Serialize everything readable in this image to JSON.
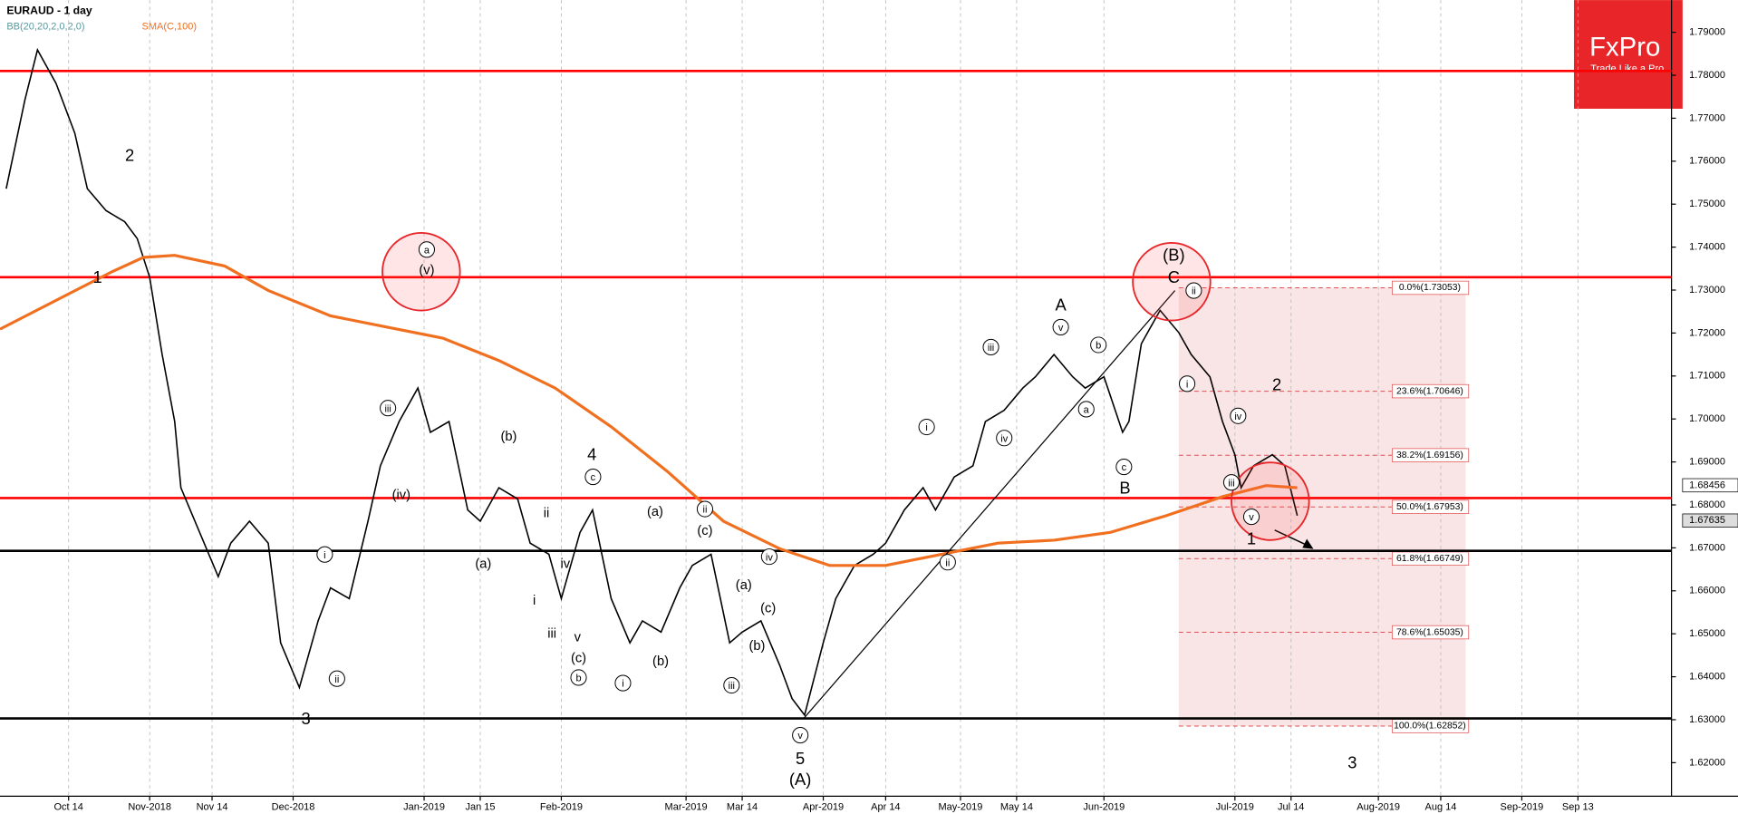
{
  "chart_data": {
    "type": "line",
    "title": "EURAUD - 1 day",
    "indicators": [
      "BB(20,20,2,0,2,0)",
      "SMA(C,100)"
    ],
    "logo": {
      "name": "FxPro",
      "slogan": "Trade Like a Pro"
    },
    "xlim": [
      0,
      268
    ],
    "ylim": [
      1.6122,
      1.7975
    ],
    "grid": "vertical",
    "xticks": [
      {
        "value": 11,
        "label": "Oct 14"
      },
      {
        "value": 24,
        "label": "Nov-2018"
      },
      {
        "value": 34,
        "label": "Nov 14"
      },
      {
        "value": 47,
        "label": "Dec-2018"
      },
      {
        "value": 68,
        "label": "Jan-2019"
      },
      {
        "value": 77,
        "label": "Jan 15"
      },
      {
        "value": 90,
        "label": "Feb-2019"
      },
      {
        "value": 110,
        "label": "Mar-2019"
      },
      {
        "value": 119,
        "label": "Mar 14"
      },
      {
        "value": 132,
        "label": "Apr-2019"
      },
      {
        "value": 142,
        "label": "Apr 14"
      },
      {
        "value": 154,
        "label": "May-2019"
      },
      {
        "value": 163,
        "label": "May 14"
      },
      {
        "value": 177,
        "label": "Jun-2019"
      },
      {
        "value": 198,
        "label": "Jul-2019"
      },
      {
        "value": 207,
        "label": "Jul 14"
      },
      {
        "value": 221,
        "label": "Aug-2019"
      },
      {
        "value": 231,
        "label": "Aug 14"
      },
      {
        "value": 244,
        "label": "Sep-2019"
      },
      {
        "value": 253,
        "label": "Sep 13"
      }
    ],
    "yticks": [
      {
        "value": 1.62,
        "label": "1.62000"
      },
      {
        "value": 1.63,
        "label": "1.63000"
      },
      {
        "value": 1.64,
        "label": "1.64000"
      },
      {
        "value": 1.65,
        "label": "1.65000"
      },
      {
        "value": 1.66,
        "label": "1.66000"
      },
      {
        "value": 1.67,
        "label": "1.67000"
      },
      {
        "value": 1.68,
        "label": "1.68000"
      },
      {
        "value": 1.69,
        "label": "1.69000"
      },
      {
        "value": 1.7,
        "label": "1.70000"
      },
      {
        "value": 1.71,
        "label": "1.71000"
      },
      {
        "value": 1.72,
        "label": "1.72000"
      },
      {
        "value": 1.73,
        "label": "1.73000"
      },
      {
        "value": 1.74,
        "label": "1.74000"
      },
      {
        "value": 1.75,
        "label": "1.75000"
      },
      {
        "value": 1.76,
        "label": "1.76000"
      },
      {
        "value": 1.77,
        "label": "1.77000"
      },
      {
        "value": 1.78,
        "label": "1.78000"
      },
      {
        "value": 1.79,
        "label": "1.79000"
      }
    ],
    "series": [
      {
        "name": "EURAUD",
        "color": "#000000",
        "x": [
          1,
          4,
          6,
          9,
          12,
          14,
          17,
          20,
          22,
          24,
          26,
          28,
          29,
          32,
          35,
          37,
          40,
          43,
          45,
          48,
          51,
          53,
          56,
          59,
          61,
          64,
          67,
          69,
          72,
          75,
          77,
          80,
          83,
          85,
          88,
          90,
          93,
          95,
          98,
          101,
          103,
          106,
          109,
          111,
          114,
          117,
          119,
          122,
          125,
          127,
          129,
          132,
          134,
          137,
          140,
          142,
          145,
          148,
          150,
          153,
          156,
          158,
          161,
          164,
          166,
          169,
          172,
          174,
          177,
          180,
          181,
          183,
          186,
          189,
          191,
          194,
          196,
          198,
          199,
          201,
          204,
          206,
          208
        ],
        "values": [
          1.7536,
          1.7743,
          1.7859,
          1.7781,
          1.7665,
          1.7536,
          1.7485,
          1.7459,
          1.742,
          1.733,
          1.715,
          1.6994,
          1.684,
          1.6736,
          1.6633,
          1.6711,
          1.6762,
          1.6711,
          1.6479,
          1.6375,
          1.653,
          1.6607,
          1.6582,
          1.6762,
          1.6891,
          1.6994,
          1.7072,
          1.6969,
          1.6994,
          1.6788,
          1.6762,
          1.684,
          1.6814,
          1.6711,
          1.6685,
          1.6582,
          1.6736,
          1.6788,
          1.6582,
          1.6479,
          1.653,
          1.6504,
          1.6607,
          1.6659,
          1.6685,
          1.6479,
          1.6504,
          1.653,
          1.6427,
          1.6349,
          1.6311,
          1.6479,
          1.6582,
          1.6659,
          1.6685,
          1.6711,
          1.6788,
          1.684,
          1.6788,
          1.6865,
          1.6891,
          1.6994,
          1.702,
          1.7072,
          1.7098,
          1.715,
          1.7098,
          1.7072,
          1.7098,
          1.6969,
          1.6994,
          1.7175,
          1.7253,
          1.7201,
          1.715,
          1.7098,
          1.6994,
          1.6917,
          1.684,
          1.6891,
          1.6917,
          1.6891,
          1.6775
        ]
      },
      {
        "name": "SMA(C,100)",
        "color": "#f07020",
        "x": [
          0,
          11,
          18,
          23,
          28,
          36,
          43,
          53,
          62,
          71,
          80,
          89,
          98,
          107,
          116,
          125,
          133,
          142,
          151,
          160,
          169,
          178,
          187,
          196,
          203,
          208
        ],
        "values": [
          1.7209,
          1.7291,
          1.7343,
          1.7376,
          1.7381,
          1.7356,
          1.7299,
          1.724,
          1.7214,
          1.7188,
          1.7136,
          1.7072,
          1.6982,
          1.6878,
          1.6762,
          1.6698,
          1.6659,
          1.6659,
          1.6685,
          1.6711,
          1.6718,
          1.6736,
          1.6775,
          1.6819,
          1.6845,
          1.684
        ]
      }
    ],
    "levels": [
      {
        "value": 1.781,
        "color": "#ff0000"
      },
      {
        "value": 1.733,
        "color": "#ff0000"
      },
      {
        "value": 1.6816,
        "color": "#ff0000"
      },
      {
        "value": 1.6693,
        "color": "#000000"
      },
      {
        "value": 1.6303,
        "color": "#000000"
      }
    ],
    "fib_levels": [
      {
        "value": 1.73053,
        "label": "0.0%(1.73053)"
      },
      {
        "value": 1.70646,
        "label": "23.6%(1.70646)"
      },
      {
        "value": 1.69156,
        "label": "38.2%(1.69156)"
      },
      {
        "value": 1.67953,
        "label": "50.0%(1.67953)"
      },
      {
        "value": 1.66749,
        "label": "61.8%(1.66749)"
      },
      {
        "value": 1.65035,
        "label": "78.6%(1.65035)"
      },
      {
        "value": 1.62852,
        "label": "100.0%(1.62852)"
      }
    ],
    "fib_range": [
      189,
      235
    ],
    "price_tags": [
      1.68456,
      1.67635
    ],
    "annotations": [
      "2",
      "1",
      "3",
      "a",
      "(v)",
      "iii",
      "(iv)",
      "i",
      "ii",
      "(b)",
      "(a)",
      "4",
      "c",
      "ii",
      "iv",
      "i",
      "iii",
      "v",
      "(c)",
      "b",
      "(a)",
      "(b)",
      "i",
      "ii",
      "(c)",
      "iv",
      "(a)",
      "(c)",
      "(b)",
      "iii",
      "v",
      "5",
      "(A)",
      "i",
      "ii",
      "iii",
      "iv",
      "A",
      "v",
      "b",
      "a",
      "c",
      "B",
      "(B)",
      "C",
      "ii",
      "i",
      "2",
      "iv",
      "iii",
      "v",
      "1",
      "3"
    ]
  }
}
